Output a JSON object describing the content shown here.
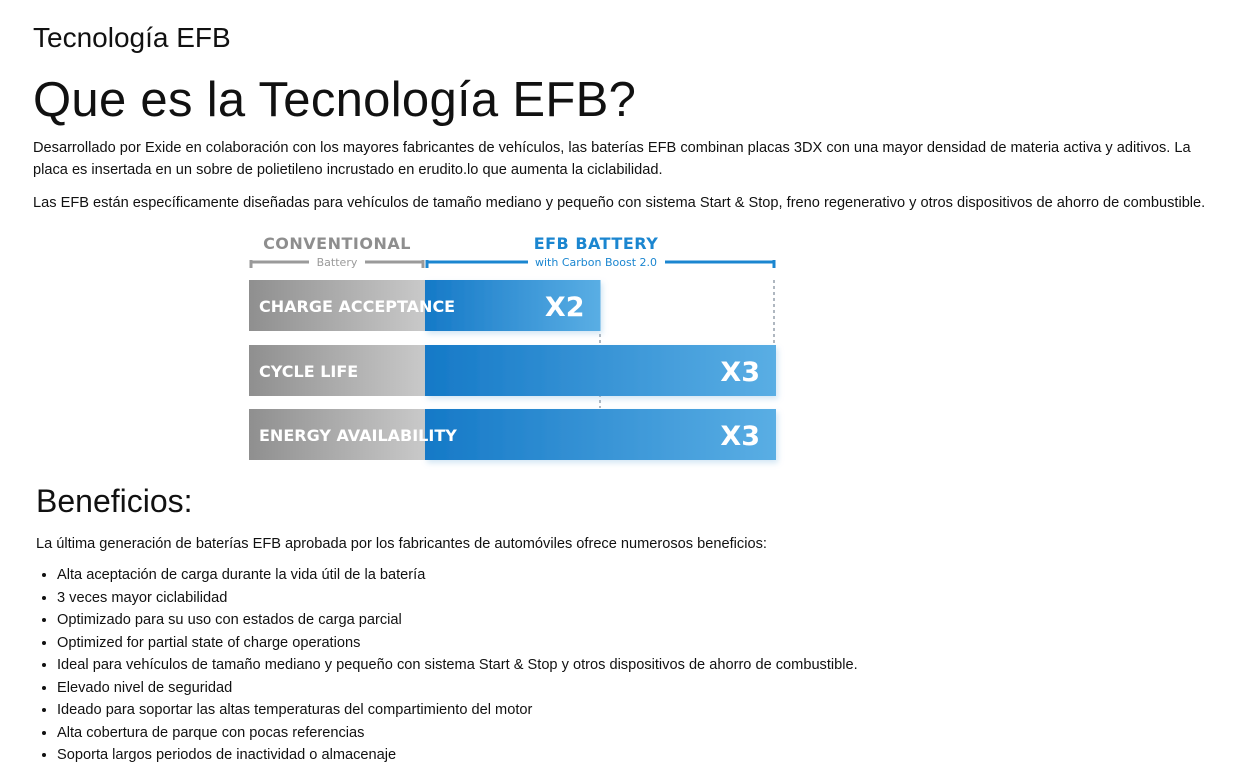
{
  "header": {
    "subtitle": "Tecnología EFB",
    "title": "Que es la Tecnología EFB?"
  },
  "intro": {
    "paragraph1": "Desarrollado por Exide en colaboración con los mayores fabricantes de vehículos, las baterías EFB combinan placas 3DX con una mayor densidad de materia activa y aditivos. La placa es insertada en un sobre de polietileno incrustado en erudito.lo que aumenta la ciclabilidad.",
    "paragraph2": "Las EFB están específicamente diseñadas para vehículos de tamaño mediano y pequeño con sistema Start & Stop, freno regenerativo y otros dispositivos de ahorro de combustible."
  },
  "comparison_graphic": {
    "conventional_title": "CONVENTIONAL",
    "conventional_subtitle": "Battery",
    "efb_title": "EFB BATTERY",
    "efb_subtitle": "with Carbon Boost 2.0",
    "rows": [
      {
        "label": "CHARGE ACCEPTANCE",
        "multiplier": "X2",
        "factor": 2
      },
      {
        "label": "CYCLE LIFE",
        "multiplier": "X3",
        "factor": 3
      },
      {
        "label": "ENERGY AVAILABILITY",
        "multiplier": "X3",
        "factor": 3
      }
    ],
    "colors": {
      "conventional_gray": "#9a9a9a",
      "efb_blue": "#1b86d0",
      "efb_light_blue": "#55ace3",
      "label_gray": "#8e8e8e"
    }
  },
  "benefits": {
    "title": "Beneficios:",
    "intro": "La última generación de baterías EFB aprobada por los fabricantes de automóviles ofrece numerosos beneficios:",
    "items": [
      "Alta aceptación de carga durante la vida útil de la batería",
      "3 veces mayor ciclabilidad",
      "Optimizado para su uso con estados de carga parcial",
      "Optimized for partial state of charge operations",
      "Ideal para vehículos de tamaño mediano y pequeño con sistema Start & Stop y otros dispositivos de ahorro de combustible.",
      "Elevado nivel de seguridad",
      "Ideado para soportar las altas temperaturas del compartimiento del motor",
      "Alta cobertura de parque con pocas referencias",
      "Soporta largos periodos de inactividad o almacenaje"
    ]
  }
}
